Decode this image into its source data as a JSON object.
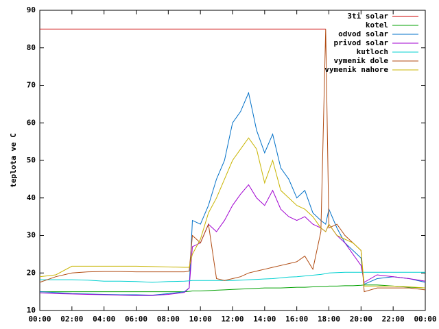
{
  "chart_data": {
    "type": "line",
    "ylabel": "teplota ve C",
    "x": [
      0,
      1,
      2,
      3,
      4,
      5,
      6,
      7,
      8,
      9,
      9.3,
      9.5,
      10,
      10.5,
      11,
      11.5,
      12,
      12.5,
      13,
      13.5,
      14,
      14.5,
      15,
      15.5,
      16,
      16.5,
      17,
      17.5,
      17.8,
      18,
      18.5,
      19,
      19.5,
      20,
      20.2,
      21,
      22,
      23,
      24
    ],
    "xlim": [
      0,
      24
    ],
    "xticks": [
      {
        "value": 0,
        "label": "00:00"
      },
      {
        "value": 2,
        "label": "02:00"
      },
      {
        "value": 4,
        "label": "04:00"
      },
      {
        "value": 6,
        "label": "06:00"
      },
      {
        "value": 8,
        "label": "08:00"
      },
      {
        "value": 10,
        "label": "10:00"
      },
      {
        "value": 12,
        "label": "12:00"
      },
      {
        "value": 14,
        "label": "14:00"
      },
      {
        "value": 16,
        "label": "16:00"
      },
      {
        "value": 18,
        "label": "18:00"
      },
      {
        "value": 20,
        "label": "20:00"
      },
      {
        "value": 22,
        "label": "22:00"
      },
      {
        "value": 24,
        "label": "00:00"
      }
    ],
    "ylim": [
      10,
      90
    ],
    "yticks": [
      10,
      20,
      30,
      40,
      50,
      60,
      70,
      80,
      90
    ],
    "grid": false,
    "legend": "top-right",
    "series": [
      {
        "name": "3ti solar",
        "color": "#cc0000",
        "values": [
          85,
          85,
          85,
          85,
          85,
          85,
          85,
          85,
          85,
          85,
          85,
          85,
          85,
          85,
          85,
          85,
          85,
          85,
          85,
          85,
          85,
          85,
          85,
          85,
          85,
          85,
          85,
          85,
          85,
          null,
          null,
          null,
          null,
          null,
          null,
          null,
          null,
          null,
          null
        ]
      },
      {
        "name": "kotel",
        "color": "#00a000",
        "values": [
          15,
          15,
          15,
          15,
          15,
          15,
          15,
          15,
          15,
          15,
          15.1,
          15.2,
          15.2,
          15.3,
          15.4,
          15.5,
          15.6,
          15.7,
          15.8,
          15.9,
          16,
          16,
          16,
          16.1,
          16.2,
          16.2,
          16.3,
          16.4,
          16.4,
          16.5,
          16.5,
          16.6,
          16.6,
          16.7,
          16.8,
          16.8,
          16.5,
          16.2,
          16
        ]
      },
      {
        "name": "odvod solar",
        "color": "#0070c8",
        "values": [
          15,
          14.8,
          14.5,
          14.4,
          14.3,
          14.2,
          14.2,
          14.1,
          14.5,
          15,
          16,
          34,
          33,
          38,
          45,
          50,
          60,
          63,
          68,
          58,
          52,
          57,
          48,
          45,
          40,
          42,
          36,
          34,
          33,
          37,
          32,
          28,
          26,
          24,
          17,
          18.5,
          19,
          18.5,
          17.5
        ]
      },
      {
        "name": "privod solar",
        "color": "#a000d0",
        "values": [
          14.7,
          14.5,
          14.4,
          14.3,
          14.2,
          14.1,
          14,
          14,
          14.3,
          14.8,
          16,
          27,
          28,
          33,
          31,
          34,
          38,
          41,
          43.5,
          40,
          38,
          42,
          37,
          35,
          34,
          35,
          33,
          32,
          31,
          33,
          30,
          28,
          25,
          22,
          17.5,
          19.5,
          19,
          18.5,
          17.8
        ]
      },
      {
        "name": "kutloch",
        "color": "#00d0d0",
        "values": [
          18.2,
          18.2,
          18.2,
          18.1,
          17.8,
          17.8,
          17.7,
          17.5,
          17.7,
          17.8,
          17.9,
          18,
          18,
          18,
          18,
          18,
          18,
          18.1,
          18.2,
          18.3,
          18.4,
          18.5,
          18.7,
          18.9,
          19,
          19.2,
          19.4,
          19.6,
          19.8,
          20,
          20.1,
          20.2,
          20.2,
          20.2,
          20.2,
          20.2,
          20.2,
          20.2,
          20.2
        ]
      },
      {
        "name": "vymenik dole",
        "color": "#b04a10",
        "values": [
          17.5,
          19,
          20,
          20.3,
          20.4,
          20.4,
          20.3,
          20.3,
          20.3,
          20.3,
          20.5,
          30,
          28,
          33,
          18.5,
          18,
          18.5,
          19,
          20,
          20.5,
          21,
          21.5,
          22,
          22.5,
          23,
          24.5,
          21,
          31,
          85,
          32,
          33,
          30,
          28,
          26,
          15,
          16,
          16,
          16,
          15.5
        ]
      },
      {
        "name": "vymenik nahore",
        "color": "#c8b400",
        "values": [
          19,
          19.5,
          21.8,
          21.8,
          21.8,
          21.8,
          21.8,
          21.7,
          21.6,
          21.5,
          21.5,
          25,
          29,
          36,
          40,
          45,
          50,
          53,
          56,
          53,
          44,
          50,
          42,
          40,
          38,
          37,
          35,
          32,
          31,
          33,
          30,
          29,
          28,
          26,
          16.5,
          16.5,
          16.5,
          16.3,
          16
        ]
      }
    ]
  }
}
